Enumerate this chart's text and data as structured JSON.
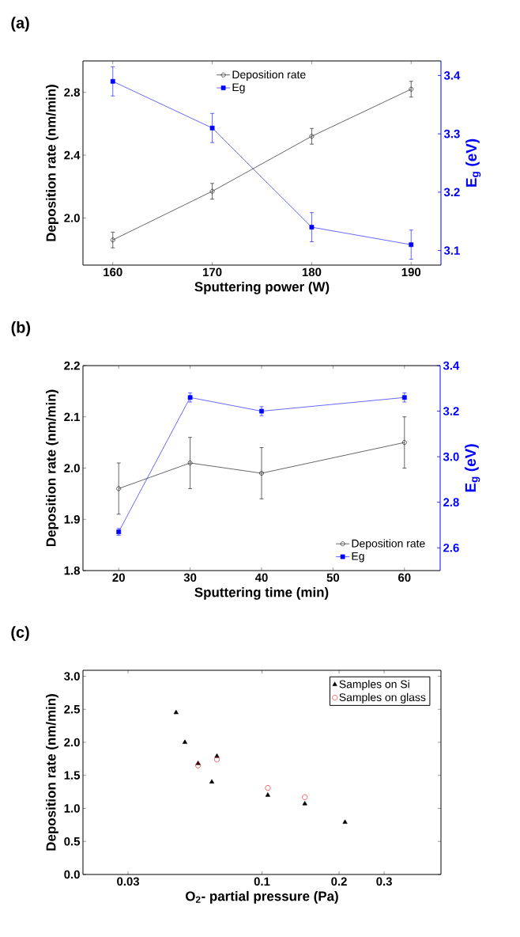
{
  "chart_data": [
    {
      "type": "line",
      "annotations": [
        "(a)"
      ],
      "xlabel": "Sputtering power (W)",
      "ylabel": "Deposition rate (nm/min)",
      "y2label": "E$_{g}$ (eV)",
      "xlim": [
        157,
        193
      ],
      "xticks": [
        160,
        170,
        180,
        190
      ],
      "ylim": [
        1.7,
        3.0
      ],
      "yticks": [
        {
          "value": 2.0,
          "label": "2.0"
        },
        2.4,
        2.8
      ],
      "y2lim": [
        3.075,
        3.425
      ],
      "y2ticks": [
        3.1,
        3.2,
        3.3,
        3.4
      ],
      "legend": "top",
      "grid": false,
      "series": [
        {
          "name": "Deposition rate",
          "color": "#000000",
          "marker": "circle",
          "x": [
            160,
            170,
            180,
            190
          ],
          "values": [
            1.86,
            2.17,
            2.52,
            2.82
          ],
          "errors": [
            0.05,
            0.05,
            0.05,
            0.05
          ]
        },
        {
          "name": "Eg",
          "color": "#0000ff",
          "marker": "square",
          "axis": "y2",
          "x": [
            160,
            170,
            180,
            190
          ],
          "values": [
            3.39,
            3.31,
            3.14,
            3.11
          ],
          "errors": [
            0.025,
            0.025,
            0.025,
            0.025
          ]
        }
      ]
    },
    {
      "type": "line",
      "annotations": [
        "(b)"
      ],
      "xlabel": "Sputtering time (min)",
      "ylabel": "Deposition rate (nm/min)",
      "y2label": "E$_{g}$ (eV)",
      "xlim": [
        15,
        65
      ],
      "xticks": [
        20,
        30,
        40,
        50,
        60
      ],
      "ylim": [
        1.8,
        2.2
      ],
      "yticks": [
        1.8,
        1.9,
        {
          "value": 2.0,
          "label": "2.0"
        },
        2.1,
        2.2
      ],
      "y2lim": [
        2.5,
        3.4
      ],
      "y2ticks": [
        2.6,
        2.8,
        {
          "value": 3.0,
          "label": "3.0"
        },
        3.2,
        3.4
      ],
      "legend": "bottom right",
      "grid": false,
      "series": [
        {
          "name": "Deposition rate",
          "color": "#000000",
          "marker": "circle",
          "x": [
            20,
            30,
            40,
            60
          ],
          "values": [
            1.96,
            2.01,
            1.99,
            2.05
          ],
          "errors": [
            0.05,
            0.05,
            0.05,
            0.05
          ]
        },
        {
          "name": "Eg",
          "color": "#0000ff",
          "marker": "square",
          "axis": "y2",
          "x": [
            20,
            30,
            40,
            60
          ],
          "values": [
            2.67,
            3.26,
            3.2,
            3.26
          ],
          "errors": [
            0.015,
            0.02,
            0.02,
            0.02
          ]
        }
      ]
    },
    {
      "type": "scatter",
      "annotations": [
        "(c)"
      ],
      "xlabel": "O$_{2}$- partial pressure (Pa)",
      "ylabel": "Deposition rate (nm/min)",
      "log": "x",
      "xlim": [
        0.02,
        0.5
      ],
      "xticks": [
        0.03,
        0.1,
        0.2,
        0.3
      ],
      "ylim": [
        0,
        3.09
      ],
      "yticks": [
        {
          "value": 0,
          "label": "0.0"
        },
        0.5,
        {
          "value": 1,
          "label": "1.0"
        },
        1.5,
        {
          "value": 2,
          "label": "2.0"
        },
        2.5,
        {
          "value": 3,
          "label": "3.0"
        }
      ],
      "legend": "top right",
      "grid": false,
      "series": [
        {
          "name": "Samples on Si",
          "color": "#000000",
          "marker": "triangle",
          "x": [
            0.0462,
            0.05,
            0.0563,
            0.0637,
            0.0667,
            0.1054,
            0.147,
            0.211
          ],
          "values": [
            2.45,
            2.0,
            1.68,
            1.4,
            1.79,
            1.2,
            1.07,
            0.79
          ]
        },
        {
          "name": "Samples on glass",
          "color": "#ff0000",
          "marker": "circle",
          "x": [
            0.0563,
            0.0667,
            0.1054,
            0.147
          ],
          "values": [
            1.65,
            1.74,
            1.31,
            1.17
          ]
        }
      ]
    }
  ]
}
